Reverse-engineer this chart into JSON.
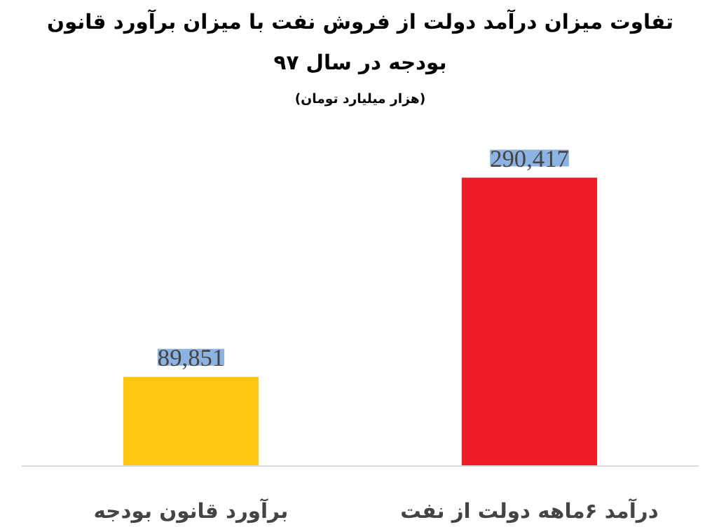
{
  "chart_data": {
    "type": "bar",
    "title": "تفاوت میزان درآمد دولت از فروش نفت با میزان برآورد قانون",
    "subtitle": "بودجه در سال ۹۷",
    "annotations": [
      "(هزار میلیارد تومان)"
    ],
    "categories": [
      "برآورد قانون بودجه",
      "درآمد ۶ماهه دولت از نفت"
    ],
    "values": [
      89851,
      290417
    ],
    "colors": [
      "#fdc70f",
      "#ee1c25"
    ],
    "value_labels": [
      "89,851",
      "290,417"
    ],
    "grid": false
  }
}
